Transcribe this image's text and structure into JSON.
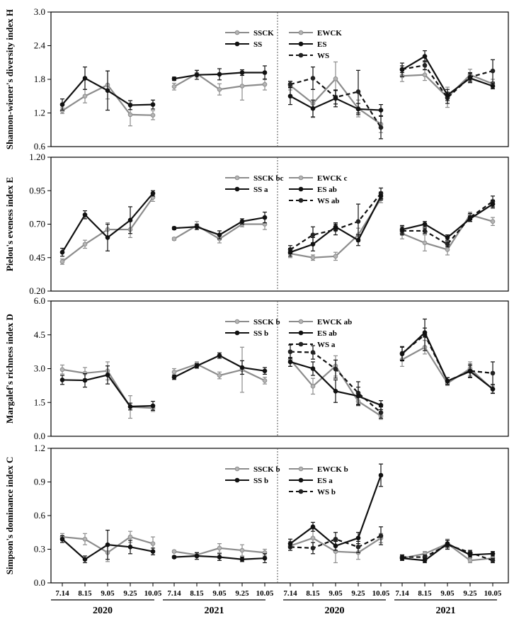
{
  "colors": {
    "gray": "#8c8c8c",
    "black": "#111111",
    "frame": "#000000"
  },
  "years": [
    "2020",
    "2021",
    "2020",
    "2021"
  ],
  "chart_data": [
    {
      "type": "line",
      "ylabel": "Shannon-wiener's diversity index H",
      "ylim": [
        0.6,
        3.0
      ],
      "yticks": [
        "0.6",
        "1.2",
        "1.8",
        "2.4",
        "3.0"
      ],
      "categories": [
        "7.14",
        "8.15",
        "9.05",
        "9.25",
        "10.05"
      ],
      "groups": [
        {
          "legend": [
            {
              "label": "SSCK",
              "style": "gray"
            },
            {
              "label": "SS",
              "style": "black"
            }
          ],
          "series": [
            {
              "style": "gray",
              "values": [
                1.24,
                1.5,
                1.7,
                1.17,
                1.16
              ],
              "err": [
                0.05,
                0.12,
                0.25,
                0.2,
                0.08
              ]
            },
            {
              "style": "black",
              "values": [
                1.35,
                1.82,
                1.6,
                1.34,
                1.35
              ],
              "err": [
                0.1,
                0.2,
                0.35,
                0.08,
                0.08
              ]
            }
          ]
        },
        {
          "legend": [],
          "series": [
            {
              "style": "gray",
              "values": [
                1.67,
                1.9,
                1.62,
                1.68,
                1.71
              ],
              "err": [
                0.06,
                0.06,
                0.1,
                0.25,
                0.1
              ]
            },
            {
              "style": "black",
              "values": [
                1.81,
                1.88,
                1.89,
                1.92,
                1.92
              ],
              "err": [
                0.03,
                0.08,
                0.1,
                0.05,
                0.12
              ]
            }
          ]
        },
        {
          "legend": [
            {
              "label": "EWCK",
              "style": "gray"
            },
            {
              "label": "ES",
              "style": "black"
            },
            {
              "label": "WS",
              "style": "dash"
            }
          ],
          "series": [
            {
              "style": "gray",
              "values": [
                1.69,
                1.37,
                1.81,
                1.28,
                1.0
              ],
              "err": [
                0.08,
                0.25,
                0.3,
                0.15,
                0.15
              ]
            },
            {
              "style": "black",
              "values": [
                1.5,
                1.28,
                1.46,
                1.27,
                1.25
              ],
              "err": [
                0.15,
                0.15,
                0.15,
                0.1,
                0.1
              ]
            },
            {
              "style": "dash",
              "values": [
                1.71,
                1.82,
                1.48,
                1.58,
                0.94
              ],
              "err": [
                0.05,
                0.2,
                0.12,
                0.38,
                0.2
              ]
            }
          ]
        },
        {
          "legend": [],
          "series": [
            {
              "style": "gray",
              "values": [
                1.86,
                1.88,
                1.48,
                1.88,
                1.72
              ],
              "err": [
                0.1,
                0.1,
                0.18,
                0.1,
                0.08
              ]
            },
            {
              "style": "black",
              "values": [
                1.97,
                2.21,
                1.52,
                1.82,
                1.68
              ],
              "err": [
                0.12,
                0.1,
                0.1,
                0.08,
                0.05
              ]
            },
            {
              "style": "dash",
              "values": [
                1.98,
                2.05,
                1.47,
                1.84,
                1.95
              ],
              "err": [
                0.06,
                0.08,
                0.1,
                0.08,
                0.2
              ]
            }
          ]
        }
      ]
    },
    {
      "type": "line",
      "ylabel": "Pielou's eveness index E",
      "ylim": [
        0.2,
        1.2
      ],
      "yticks": [
        "0.20",
        "0.45",
        "0.70",
        "0.95",
        "1.20"
      ],
      "categories": [
        "7.14",
        "8.15",
        "9.05",
        "9.25",
        "10.05"
      ],
      "groups": [
        {
          "legend": [
            {
              "label": "SSCK bc",
              "style": "gray"
            },
            {
              "label": "SS a",
              "style": "black"
            }
          ],
          "series": [
            {
              "style": "gray",
              "values": [
                0.42,
                0.55,
                0.66,
                0.66,
                0.9
              ],
              "err": [
                0.02,
                0.03,
                0.05,
                0.06,
                0.03
              ]
            },
            {
              "style": "black",
              "values": [
                0.49,
                0.77,
                0.6,
                0.73,
                0.93
              ],
              "err": [
                0.03,
                0.03,
                0.1,
                0.1,
                0.02
              ]
            }
          ]
        },
        {
          "legend": [],
          "series": [
            {
              "style": "gray",
              "values": [
                0.59,
                0.69,
                0.59,
                0.7,
                0.7
              ],
              "err": [
                0.01,
                0.03,
                0.03,
                0.02,
                0.04
              ]
            },
            {
              "style": "black",
              "values": [
                0.67,
                0.68,
                0.62,
                0.72,
                0.75
              ],
              "err": [
                0.01,
                0.02,
                0.03,
                0.02,
                0.04
              ]
            }
          ]
        },
        {
          "legend": [
            {
              "label": "EWCK c",
              "style": "gray"
            },
            {
              "label": "ES ab",
              "style": "black"
            },
            {
              "label": "WS ab",
              "style": "dash"
            }
          ],
          "series": [
            {
              "style": "gray",
              "values": [
                0.48,
                0.45,
                0.46,
                0.62,
                0.89
              ],
              "err": [
                0.03,
                0.02,
                0.03,
                0.05,
                0.03
              ]
            },
            {
              "style": "black",
              "values": [
                0.49,
                0.55,
                0.68,
                0.58,
                0.91
              ],
              "err": [
                0.03,
                0.05,
                0.03,
                0.04,
                0.03
              ]
            },
            {
              "style": "dash",
              "values": [
                0.51,
                0.62,
                0.66,
                0.72,
                0.93
              ],
              "err": [
                0.03,
                0.06,
                0.04,
                0.13,
                0.04
              ]
            }
          ]
        },
        {
          "legend": [],
          "series": [
            {
              "style": "gray",
              "values": [
                0.63,
                0.56,
                0.51,
                0.77,
                0.72
              ],
              "err": [
                0.04,
                0.06,
                0.04,
                0.02,
                0.03
              ]
            },
            {
              "style": "black",
              "values": [
                0.66,
                0.7,
                0.6,
                0.74,
                0.85
              ],
              "err": [
                0.03,
                0.02,
                0.02,
                0.02,
                0.03
              ]
            },
            {
              "style": "dash",
              "values": [
                0.65,
                0.65,
                0.55,
                0.75,
                0.87
              ],
              "err": [
                0.03,
                0.02,
                0.02,
                0.03,
                0.04
              ]
            }
          ]
        }
      ]
    },
    {
      "type": "line",
      "ylabel": "Margalef's richness index D",
      "ylim": [
        0.0,
        6.0
      ],
      "yticks": [
        "0.0",
        "1.5",
        "3.0",
        "4.5",
        "6.0"
      ],
      "categories": [
        "7.14",
        "8.15",
        "9.05",
        "9.25",
        "10.05"
      ],
      "groups": [
        {
          "legend": [
            {
              "label": "SSCK b",
              "style": "gray"
            },
            {
              "label": "SS b",
              "style": "black"
            }
          ],
          "series": [
            {
              "style": "gray",
              "values": [
                2.96,
                2.8,
                2.9,
                1.3,
                1.25
              ],
              "err": [
                0.2,
                0.25,
                0.4,
                0.5,
                0.15
              ]
            },
            {
              "style": "black",
              "values": [
                2.5,
                2.48,
                2.72,
                1.32,
                1.35
              ],
              "err": [
                0.2,
                0.3,
                0.4,
                0.15,
                0.2
              ]
            }
          ]
        },
        {
          "legend": [],
          "series": [
            {
              "style": "gray",
              "values": [
                2.85,
                3.2,
                2.7,
                2.95,
                2.47
              ],
              "err": [
                0.15,
                0.1,
                0.15,
                1.0,
                0.15
              ]
            },
            {
              "style": "black",
              "values": [
                2.62,
                3.12,
                3.58,
                3.05,
                2.9
              ],
              "err": [
                0.1,
                0.1,
                0.12,
                0.3,
                0.15
              ]
            }
          ]
        },
        {
          "legend": [
            {
              "label": "EWCK ab",
              "style": "gray"
            },
            {
              "label": "ES ab",
              "style": "black"
            },
            {
              "label": "WS a",
              "style": "dash"
            }
          ],
          "series": [
            {
              "style": "gray",
              "values": [
                3.4,
                2.22,
                3.12,
                1.55,
                0.9
              ],
              "err": [
                0.3,
                0.35,
                0.45,
                0.2,
                0.15
              ]
            },
            {
              "style": "black",
              "values": [
                3.3,
                3.0,
                2.0,
                1.78,
                1.38
              ],
              "err": [
                0.2,
                0.3,
                0.5,
                0.4,
                0.2
              ]
            },
            {
              "style": "dash",
              "values": [
                3.75,
                3.72,
                2.98,
                1.92,
                1.05
              ],
              "err": [
                0.3,
                0.3,
                0.4,
                0.5,
                0.25
              ]
            }
          ]
        },
        {
          "legend": [],
          "series": [
            {
              "style": "gray",
              "values": [
                3.4,
                3.95,
                2.35,
                3.0,
                2.08
              ],
              "err": [
                0.3,
                0.3,
                0.1,
                0.3,
                0.15
              ]
            },
            {
              "style": "black",
              "values": [
                3.65,
                4.6,
                2.45,
                2.88,
                2.1
              ],
              "err": [
                0.3,
                0.2,
                0.15,
                0.25,
                0.2
              ]
            },
            {
              "style": "dash",
              "values": [
                3.68,
                4.5,
                2.45,
                2.9,
                2.8
              ],
              "err": [
                0.3,
                0.7,
                0.15,
                0.3,
                0.5
              ]
            }
          ]
        }
      ]
    },
    {
      "type": "line",
      "ylabel": "Simpson's dominance index C",
      "ylim": [
        0.0,
        1.2
      ],
      "yticks": [
        "0.0",
        "0.3",
        "0.6",
        "0.9",
        "1.2"
      ],
      "categories": [
        "7.14",
        "8.15",
        "9.05",
        "9.25",
        "10.05"
      ],
      "groups": [
        {
          "legend": [
            {
              "label": "SSCK b",
              "style": "gray"
            },
            {
              "label": "SS b",
              "style": "black"
            }
          ],
          "series": [
            {
              "style": "gray",
              "values": [
                0.41,
                0.39,
                0.27,
                0.41,
                0.35
              ],
              "err": [
                0.03,
                0.05,
                0.08,
                0.05,
                0.06
              ]
            },
            {
              "style": "black",
              "values": [
                0.39,
                0.21,
                0.34,
                0.32,
                0.28
              ],
              "err": [
                0.03,
                0.03,
                0.13,
                0.06,
                0.03
              ]
            }
          ]
        },
        {
          "legend": [],
          "series": [
            {
              "style": "gray",
              "values": [
                0.28,
                0.25,
                0.31,
                0.29,
                0.27
              ],
              "err": [
                0.01,
                0.02,
                0.04,
                0.05,
                0.03
              ]
            },
            {
              "style": "black",
              "values": [
                0.23,
                0.24,
                0.23,
                0.21,
                0.22
              ],
              "err": [
                0.01,
                0.03,
                0.03,
                0.02,
                0.04
              ]
            }
          ]
        },
        {
          "legend": [
            {
              "label": "EWCK b",
              "style": "gray"
            },
            {
              "label": "ES a",
              "style": "black"
            },
            {
              "label": "WS b",
              "style": "dash"
            }
          ],
          "series": [
            {
              "style": "gray",
              "values": [
                0.33,
                0.4,
                0.28,
                0.27,
                0.4
              ],
              "err": [
                0.04,
                0.08,
                0.1,
                0.06,
                0.04
              ]
            },
            {
              "style": "black",
              "values": [
                0.35,
                0.5,
                0.33,
                0.4,
                0.96
              ],
              "err": [
                0.04,
                0.04,
                0.04,
                0.05,
                0.1
              ]
            },
            {
              "style": "dash",
              "values": [
                0.32,
                0.31,
                0.39,
                0.32,
                0.42
              ],
              "err": [
                0.03,
                0.05,
                0.06,
                0.05,
                0.08
              ]
            }
          ]
        },
        {
          "legend": [],
          "series": [
            {
              "style": "gray",
              "values": [
                0.22,
                0.26,
                0.35,
                0.2,
                0.22
              ],
              "err": [
                0.02,
                0.02,
                0.04,
                0.02,
                0.02
              ]
            },
            {
              "style": "black",
              "values": [
                0.22,
                0.2,
                0.35,
                0.25,
                0.26
              ],
              "err": [
                0.02,
                0.02,
                0.03,
                0.02,
                0.02
              ]
            },
            {
              "style": "dash",
              "values": [
                0.23,
                0.23,
                0.34,
                0.27,
                0.2
              ],
              "err": [
                0.02,
                0.02,
                0.04,
                0.02,
                0.02
              ]
            }
          ]
        }
      ]
    }
  ]
}
